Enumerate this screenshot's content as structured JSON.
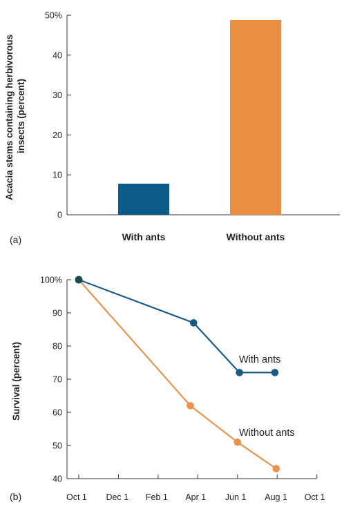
{
  "chart_data": [
    {
      "type": "bar",
      "panel_label": "(a)",
      "categories": [
        "With ants",
        "Without ants"
      ],
      "values": [
        7.8,
        48.8
      ],
      "ylabel": "Acacia stems containing herbivorous insects (percent)",
      "ylabel_lines": [
        "Acacia stems containing herbivorous",
        "insects (percent)"
      ],
      "ylim": [
        0,
        50
      ],
      "yticks": [
        {
          "value": 0,
          "label": "0"
        },
        {
          "value": 10,
          "label": "10"
        },
        {
          "value": 20,
          "label": "20"
        },
        {
          "value": 30,
          "label": "30"
        },
        {
          "value": 40,
          "label": "40"
        },
        {
          "value": 50,
          "label": "50%"
        }
      ],
      "colors": [
        "#0c5a8a",
        "#ea8e43"
      ],
      "grid": false
    },
    {
      "type": "line",
      "panel_label": "(b)",
      "ylabel": "Survival (percent)",
      "ylim": [
        40,
        100
      ],
      "yticks": [
        {
          "value": 40,
          "label": "40"
        },
        {
          "value": 50,
          "label": "50"
        },
        {
          "value": 60,
          "label": "60"
        },
        {
          "value": 70,
          "label": "70"
        },
        {
          "value": 80,
          "label": "80"
        },
        {
          "value": 90,
          "label": "90"
        },
        {
          "value": 100,
          "label": "100%"
        }
      ],
      "x_categories": [
        "Oct 1",
        "Dec 1",
        "Feb 1",
        "Apr 1",
        "Jun 1",
        "Aug 1",
        "Oct 1"
      ],
      "grid": false,
      "series": [
        {
          "name": "With ants",
          "color": "#1a5b86",
          "points": [
            {
              "x": "Oct 1",
              "y": 100
            },
            {
              "x": "Mar 25",
              "y": 87
            },
            {
              "x": "Jun 4",
              "y": 72
            },
            {
              "x": "Jul 28",
              "y": 72
            }
          ]
        },
        {
          "name": "Without ants",
          "color": "#e8944e",
          "points": [
            {
              "x": "Oct 1",
              "y": 100
            },
            {
              "x": "Mar 20",
              "y": 62
            },
            {
              "x": "Jun 1",
              "y": 51
            },
            {
              "x": "Jul 30",
              "y": 43
            }
          ]
        }
      ],
      "start_marker_color": "#1f4a4c"
    }
  ]
}
